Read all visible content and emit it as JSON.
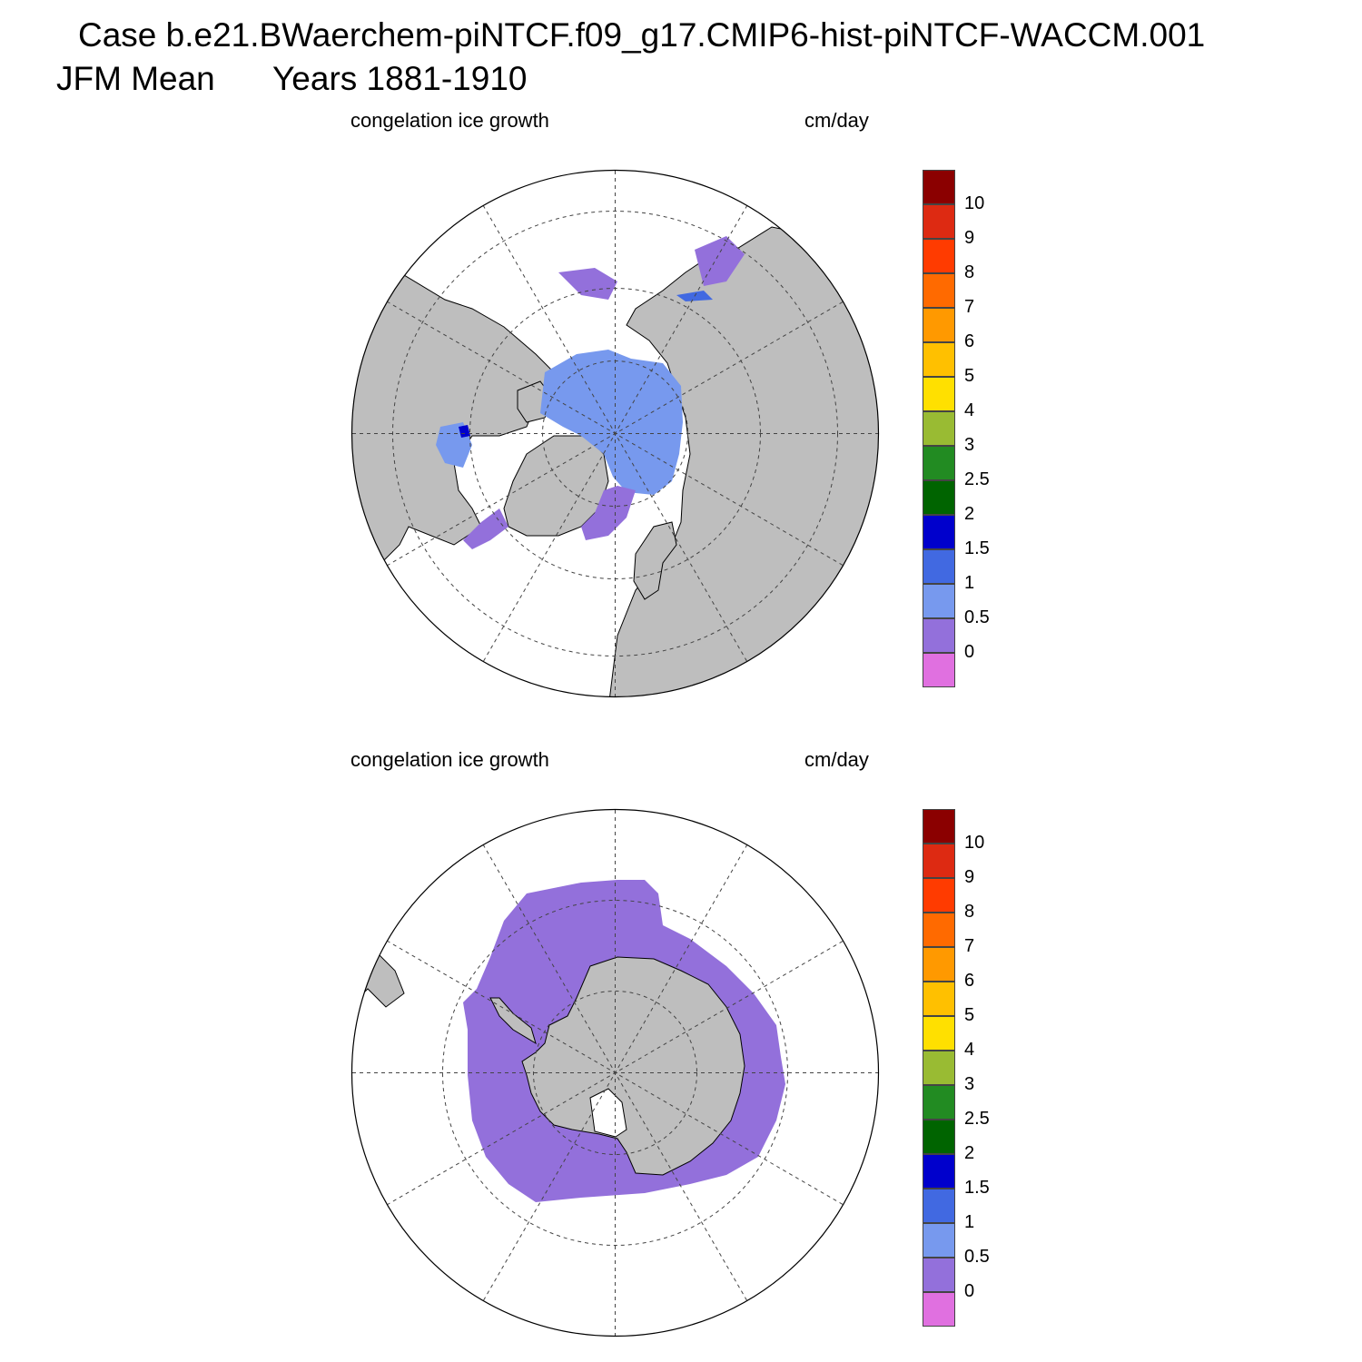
{
  "title": {
    "case": "Case b.e21.BWaerchem-piNTCF.f09_g17.CMIP6-hist-piNTCF-WACCM.001",
    "season": "JFM Mean",
    "years": "Years 1881-1910"
  },
  "panels": [
    {
      "id": "north",
      "hemisphere": "Northern Hemisphere",
      "variable_label": "congelation ice growth",
      "units_label": "cm/day"
    },
    {
      "id": "south",
      "hemisphere": "Southern Hemisphere",
      "variable_label": "congelation ice growth",
      "units_label": "cm/day"
    }
  ],
  "colorbar": {
    "labels": [
      "10",
      "9",
      "8",
      "7",
      "6",
      "5",
      "4",
      "3",
      "2.5",
      "2",
      "1.5",
      "1",
      "0.5",
      "0"
    ],
    "colors": [
      "#8b0000",
      "#dd2a12",
      "#ff3b00",
      "#ff6a00",
      "#ff9900",
      "#ffc000",
      "#ffe000",
      "#99bb33",
      "#228b22",
      "#006400",
      "#0000cc",
      "#4169e1",
      "#7799ee",
      "#9370db",
      "#e070e0"
    ]
  },
  "map_colors": {
    "land": "#bebebe",
    "ice_0_0.5": "#9370db",
    "ice_0.5_1": "#7799ee",
    "ice_1_1.5": "#4169e1",
    "ice_1.5_2": "#0000cc"
  }
}
